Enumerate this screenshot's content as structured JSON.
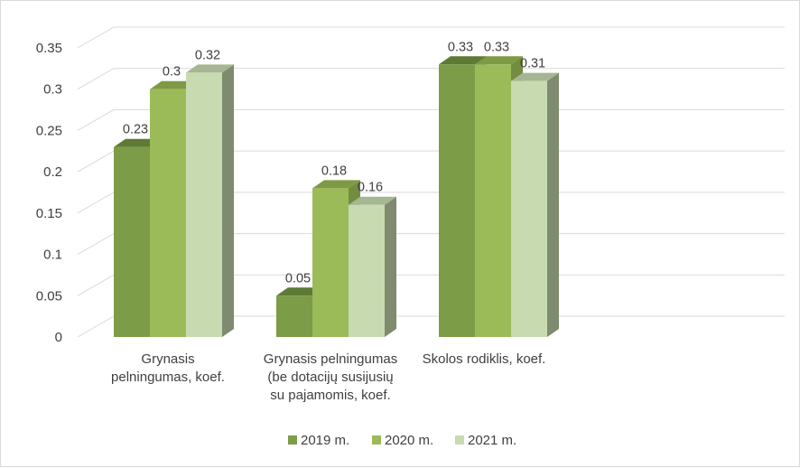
{
  "chart_data": {
    "type": "bar",
    "style": "3d-clustered-column",
    "categories": [
      [
        "Grynasis",
        "pelningumas, koef."
      ],
      [
        "Grynasis pelningumas",
        "(be dotacijų susijusių",
        "su pajamomis, koef."
      ],
      [
        "Skolos rodiklis, koef."
      ]
    ],
    "series": [
      {
        "name": "2019 m.",
        "values": [
          0.23,
          0.05,
          0.33
        ],
        "labels": [
          "0.23",
          "0.05",
          "0.33"
        ]
      },
      {
        "name": "2020 m.",
        "values": [
          0.3,
          0.18,
          0.33
        ],
        "labels": [
          "0.3",
          "0.18",
          "0.33"
        ]
      },
      {
        "name": "2021 m.",
        "values": [
          0.32,
          0.16,
          0.31
        ],
        "labels": [
          "0.32",
          "0.16",
          "0.31"
        ]
      }
    ],
    "yticks": [
      "0",
      "0.05",
      "0.1",
      "0.15",
      "0.2",
      "0.25",
      "0.3",
      "0.35"
    ],
    "ylim": [
      0,
      0.35
    ],
    "grid": true,
    "legend_position": "bottom",
    "colors": {
      "2019 m.": {
        "front": "#7c9c48",
        "top": "#5f7a34",
        "side": "#5a7232"
      },
      "2020 m.": {
        "front": "#9bbb59",
        "top": "#7f9a44",
        "side": "#738c40"
      },
      "2021 m.": {
        "front": "#c8dbb0",
        "top": "#a6b692",
        "side": "#7e8b6e"
      },
      "grid": "#d9d9d9"
    }
  }
}
